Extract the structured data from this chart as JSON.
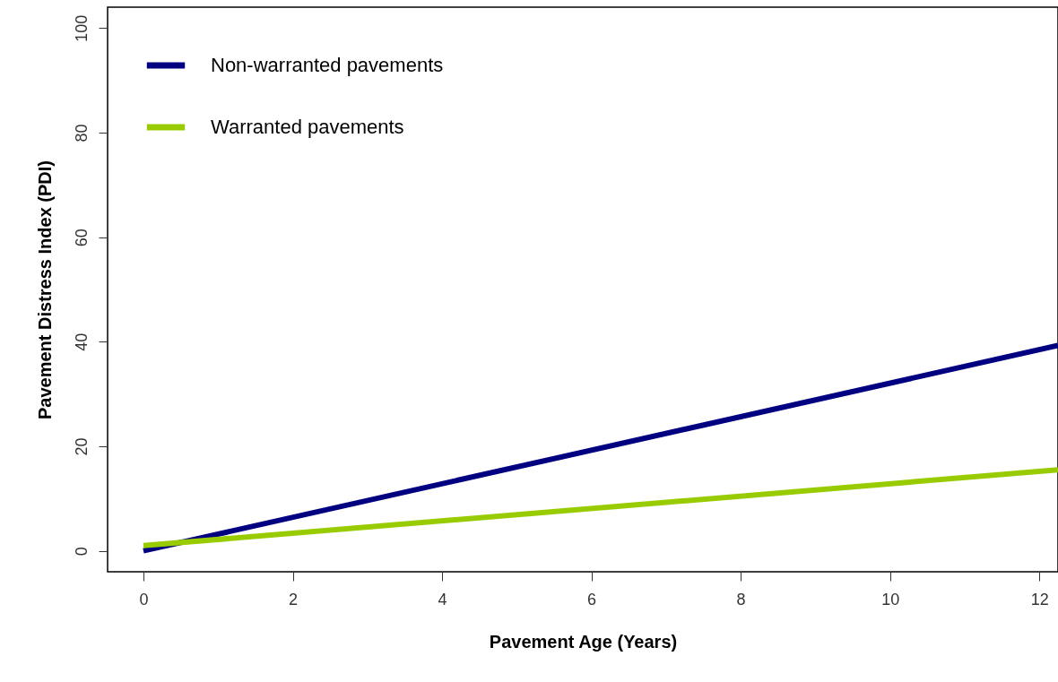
{
  "chart_data": {
    "type": "line",
    "xlabel": "Pavement Age (Years)",
    "ylabel": "Pavement Distress Index (PDI)",
    "xlim": [
      -0.48,
      12.25
    ],
    "ylim": [
      -4,
      104
    ],
    "xticks": [
      0,
      2,
      4,
      6,
      8,
      10,
      12
    ],
    "yticks": [
      0,
      20,
      40,
      60,
      80,
      100
    ],
    "grid": false,
    "legend": "top left",
    "marker": "none",
    "line_style": "solid",
    "x": [
      0,
      12.25
    ],
    "series": [
      {
        "name": "Non-warranted pavements",
        "color": "#000080",
        "values": [
          0,
          39.3
        ]
      },
      {
        "name": "Warranted pavements",
        "color": "#99cc00",
        "values": [
          1,
          15.5
        ]
      }
    ]
  }
}
